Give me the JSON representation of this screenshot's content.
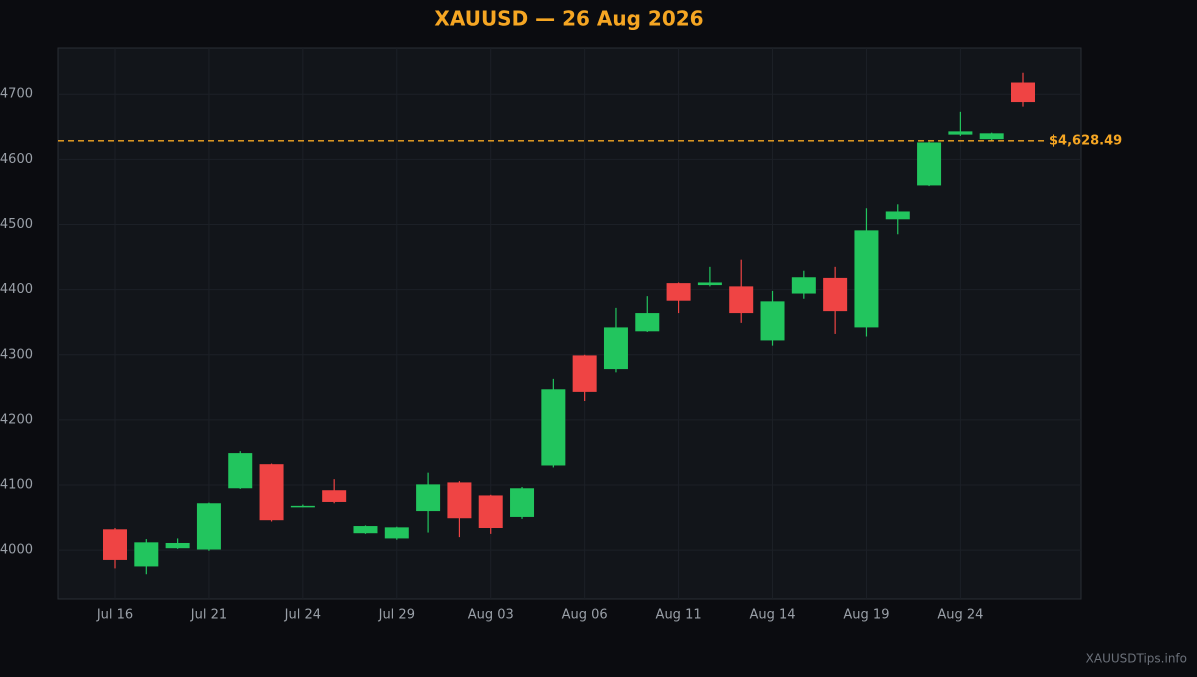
{
  "chart_data": {
    "type": "candlestick",
    "title": "XAUUSD — 26 Aug 2026",
    "categories": [
      "Jul 16",
      null,
      null,
      "Jul 21",
      null,
      null,
      "Jul 24",
      null,
      null,
      "Jul 29",
      null,
      null,
      "Aug 03",
      null,
      null,
      "Aug 06",
      null,
      null,
      "Aug 11",
      null,
      null,
      "Aug 14",
      null,
      null,
      "Aug 19",
      null,
      null,
      "Aug 24",
      null,
      null
    ],
    "open": [
      4032,
      3975,
      4003,
      4001,
      4095,
      4132,
      4067,
      4092,
      4026,
      4018,
      4060,
      4104,
      4084,
      4051,
      4130,
      4299,
      4278,
      4336,
      4410,
      4407,
      4405,
      4322,
      4394,
      4418,
      4342,
      4508,
      4560,
      4638,
      4631,
      4718
    ],
    "high": [
      4034,
      4017,
      4018,
      4073,
      4152,
      4133,
      4070,
      4109,
      4038,
      4036,
      4119,
      4106,
      4085,
      4097,
      4263,
      4300,
      4372,
      4390,
      4411,
      4435,
      4446,
      4398,
      4429,
      4435,
      4525,
      4531,
      4627,
      4673,
      4641,
      4733
    ],
    "low": [
      3972,
      3963,
      4002,
      3999,
      4094,
      4044,
      4066,
      4072,
      4025,
      4016,
      4027,
      4020,
      4025,
      4048,
      4127,
      4229,
      4273,
      4335,
      4364,
      4405,
      4349,
      4314,
      4386,
      4332,
      4328,
      4485,
      4559,
      4636,
      4629,
      4681
    ],
    "close": [
      3985,
      4012,
      4011,
      4072,
      4149,
      4046,
      4068,
      4074,
      4037,
      4035,
      4101,
      4049,
      4034,
      4095,
      4247,
      4243,
      4342,
      4364,
      4383,
      4411,
      4364,
      4382,
      4419,
      4367,
      4491,
      4520,
      4626,
      4643,
      4640,
      4688
    ],
    "up_color": "#22c55e",
    "down_color": "#ef4444",
    "current_price": {
      "value": 4628.49,
      "label": "$4,628.49"
    },
    "current_price_color": "#f5a623",
    "ylim": [
      3925,
      4771
    ],
    "yticks": [
      4000,
      4100,
      4200,
      4300,
      4400,
      4500,
      4600,
      4700
    ],
    "grid": true,
    "watermark": "XAUUSDTips.info"
  }
}
